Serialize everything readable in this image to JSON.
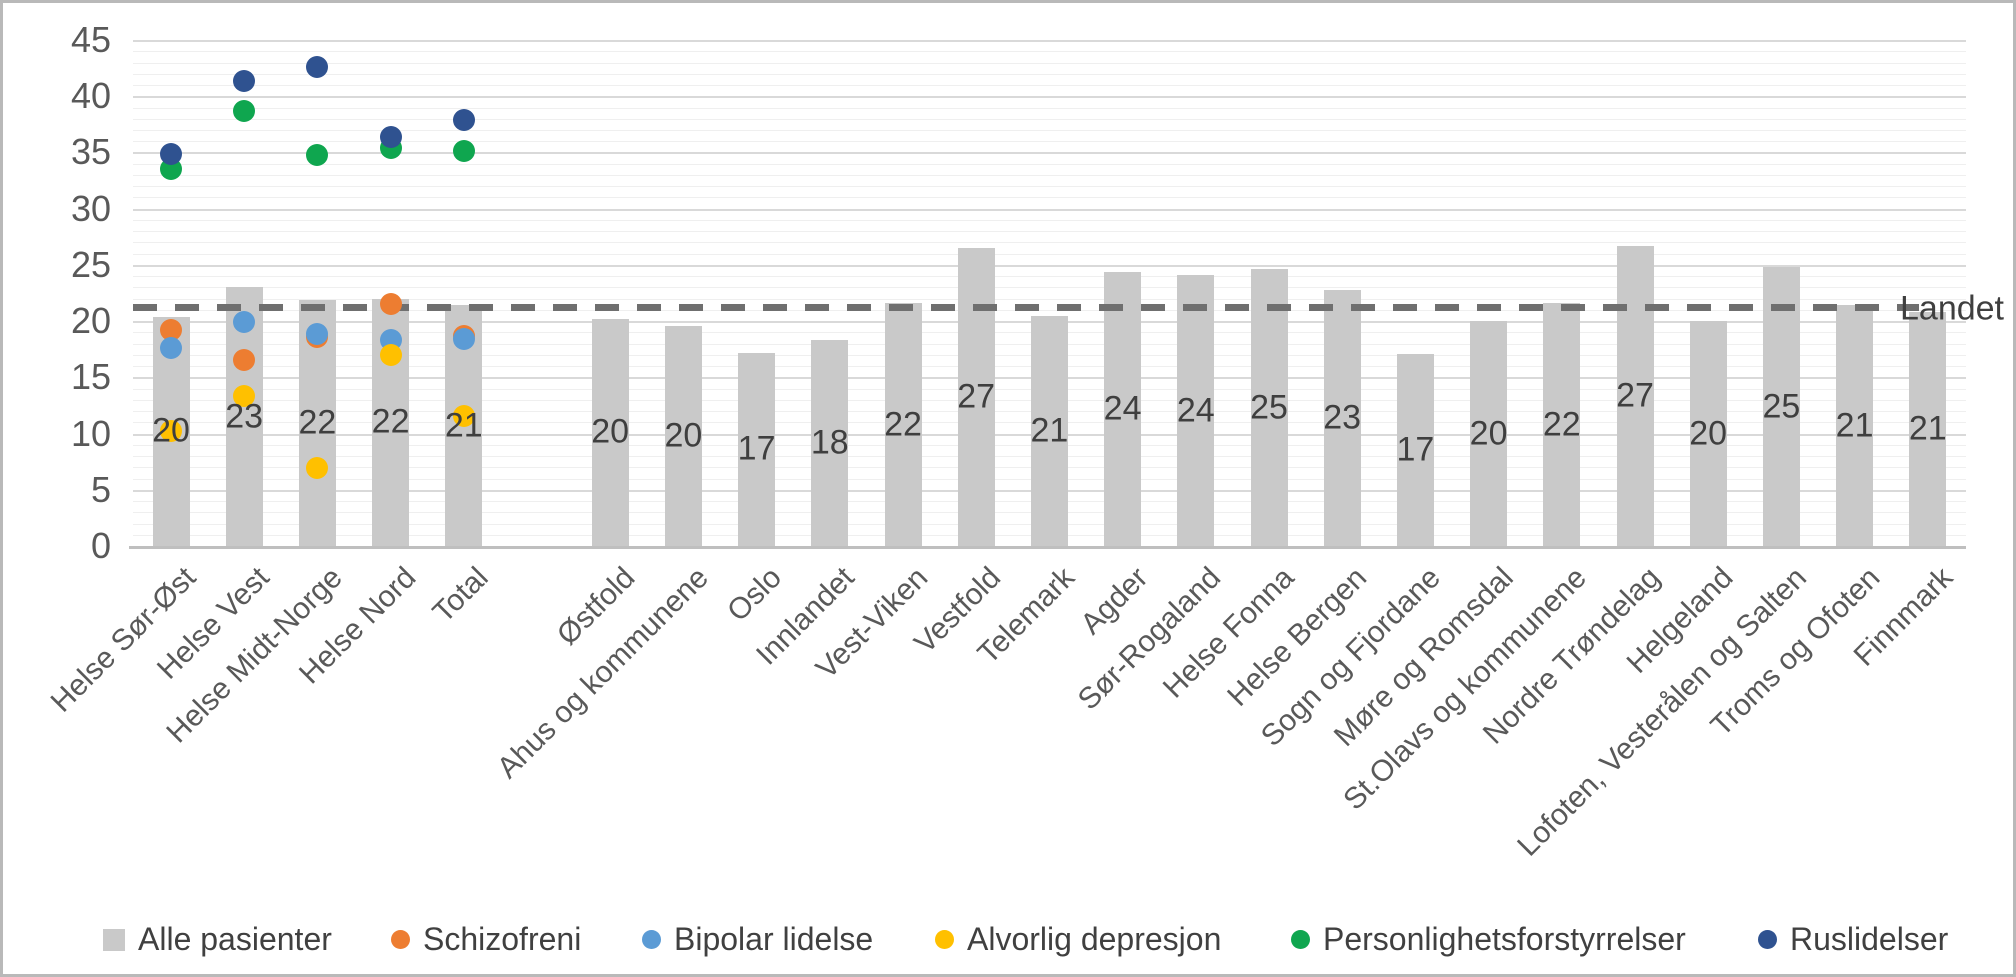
{
  "chart_data": {
    "type": "bar",
    "title": "",
    "y_axis": {
      "min": 0,
      "max": 46,
      "tick_step": 5,
      "ticks": [
        0,
        5,
        10,
        15,
        20,
        25,
        30,
        35,
        40,
        45
      ],
      "grid": "minor+major"
    },
    "categories": [
      "Helse Sør-Øst",
      "Helse Vest",
      "Helse Midt-Norge",
      "Helse Nord",
      "Total",
      "",
      "Østfold",
      "Ahus og kommunene",
      "Oslo",
      "Innlandet",
      "Vest-Viken",
      "Vestfold",
      "Telemark",
      "Agder",
      "Sør-Rogaland",
      "Helse Fonna",
      "Helse Bergen",
      "Sogn og Fjordane",
      "Møre og Romsdal",
      "St.Olavs og kommunene",
      "Nordre Trøndelag",
      "Helgeland",
      "Lofoten, Vesterålen og Salten",
      "Troms og Ofoten",
      "Finnmark"
    ],
    "bar_series": {
      "name": "Alle pasienter",
      "color": "#c9c9c9",
      "values": [
        20.4,
        23.0,
        21.9,
        22.0,
        21.4,
        null,
        20.2,
        19.6,
        17.2,
        18.3,
        21.6,
        26.5,
        20.5,
        24.4,
        24.1,
        24.6,
        22.8,
        17.1,
        20.0,
        21.6,
        26.7,
        20.0,
        24.8,
        21.4,
        20.8
      ],
      "labels": [
        "20",
        "23",
        "22",
        "22",
        "21",
        "",
        "20",
        "20",
        "17",
        "18",
        "22",
        "27",
        "21",
        "24",
        "24",
        "25",
        "23",
        "17",
        "20",
        "22",
        "27",
        "20",
        "25",
        "21",
        "21"
      ]
    },
    "scatter_series": [
      {
        "name": "Schizofreni",
        "color": "#ed7d31",
        "x_categories": [
          "Helse Sør-Øst",
          "Helse Vest",
          "Helse Midt-Norge",
          "Helse Nord",
          "Total"
        ],
        "values": [
          19.2,
          16.5,
          18.6,
          21.5,
          18.7
        ]
      },
      {
        "name": "Bipolar lidelse",
        "color": "#5b9bd5",
        "x_categories": [
          "Helse Sør-Øst",
          "Helse Vest",
          "Helse Midt-Norge",
          "Helse Nord",
          "Total"
        ],
        "values": [
          17.6,
          19.9,
          18.9,
          18.3,
          18.4
        ]
      },
      {
        "name": "Alvorlig depresjon",
        "color": "#ffc000",
        "x_categories": [
          "Helse Sør-Øst",
          "Helse Vest",
          "Helse Midt-Norge",
          "Helse Nord",
          "Total"
        ],
        "values": [
          10.2,
          13.3,
          6.9,
          17.0,
          11.6
        ]
      },
      {
        "name": "Personlighetsforstyrrelser",
        "color": "#0fa64f",
        "x_categories": [
          "Helse Sør-Øst",
          "Helse Vest",
          "Helse Midt-Norge",
          "Helse Nord",
          "Total"
        ],
        "values": [
          33.5,
          38.7,
          34.8,
          35.4,
          35.1
        ]
      },
      {
        "name": "Ruslidelser",
        "color": "#2f5290",
        "x_categories": [
          "Helse Sør-Øst",
          "Helse Vest",
          "Helse Midt-Norge",
          "Helse Nord",
          "Total"
        ],
        "values": [
          34.9,
          41.4,
          42.6,
          36.4,
          37.9
        ]
      }
    ],
    "reference_line": {
      "label": "Landet",
      "value": 21.3,
      "style": "dashed",
      "color": "#6f6f6f"
    },
    "legend": {
      "position": "bottom",
      "entries": [
        {
          "label": "Alle pasienter",
          "swatch": "square",
          "color": "#c9c9c9"
        },
        {
          "label": "Schizofreni",
          "swatch": "circle",
          "color": "#ed7d31"
        },
        {
          "label": "Bipolar lidelse",
          "swatch": "circle",
          "color": "#5b9bd5"
        },
        {
          "label": "Alvorlig depresjon",
          "swatch": "circle",
          "color": "#ffc000"
        },
        {
          "label": "Personlighetsforstyrrelser",
          "swatch": "circle",
          "color": "#0fa64f"
        },
        {
          "label": "Ruslidelser",
          "swatch": "circle",
          "color": "#2f5290"
        }
      ]
    }
  },
  "colors": {
    "grid_minor": "#efefef",
    "grid_major": "#d9d9d9",
    "axis_line": "#bfbfbf",
    "axis_text": "#595959",
    "data_label_text": "#3f3f3f",
    "legend_text": "#404040",
    "frame_border": "#b9b9b9"
  }
}
